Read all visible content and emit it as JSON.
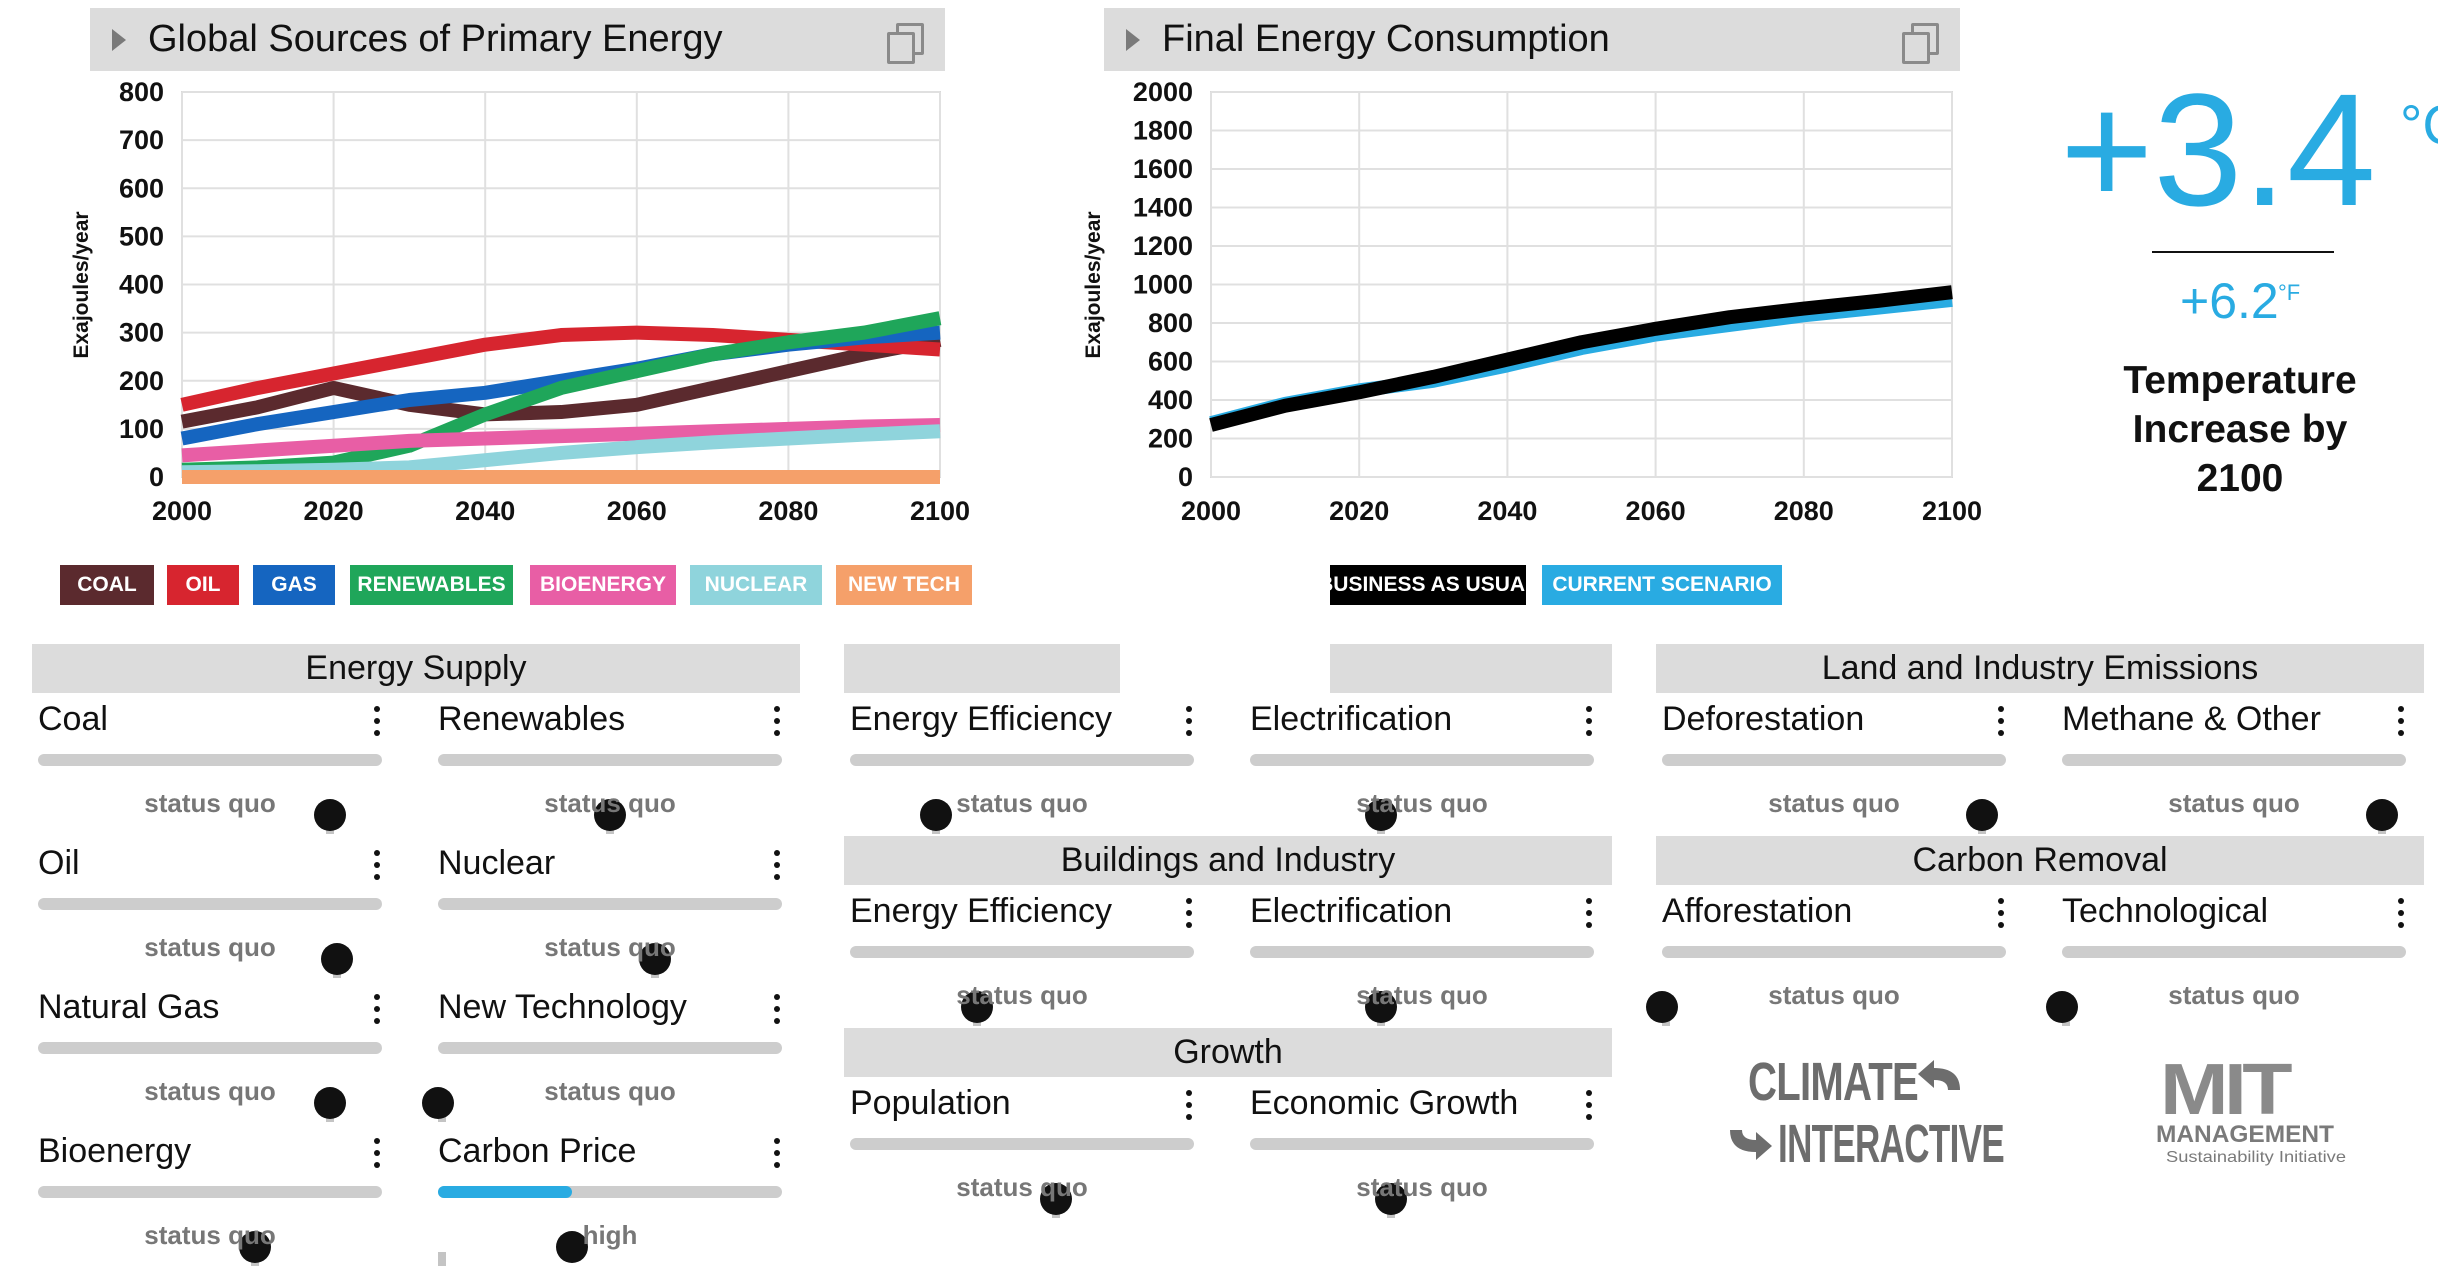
{
  "primary_chart": {
    "title": "Global Sources of Primary Energy",
    "ylabel": "Exajoules/year",
    "xticks": [
      "2000",
      "2020",
      "2040",
      "2060",
      "2080",
      "2100"
    ],
    "yticks": [
      "0",
      "100",
      "200",
      "300",
      "400",
      "500",
      "600",
      "700",
      "800"
    ]
  },
  "final_chart": {
    "title": "Final Energy Consumption",
    "ylabel": "Exajoules/year",
    "xticks": [
      "2000",
      "2020",
      "2040",
      "2060",
      "2080",
      "2100"
    ],
    "yticks": [
      "0",
      "200",
      "400",
      "600",
      "800",
      "1000",
      "1200",
      "1400",
      "1600",
      "1800",
      "2000"
    ]
  },
  "chart_data": [
    {
      "type": "line",
      "title": "Global Sources of Primary Energy",
      "xlabel": "",
      "ylabel": "Exajoules/year",
      "xlim": [
        2000,
        2100
      ],
      "ylim": [
        0,
        800
      ],
      "grid": true,
      "x": [
        2000,
        2010,
        2020,
        2030,
        2040,
        2050,
        2060,
        2070,
        2080,
        2090,
        2100
      ],
      "series": [
        {
          "name": "COAL",
          "color": "#5b2a2e",
          "values": [
            115,
            145,
            185,
            150,
            130,
            135,
            150,
            185,
            220,
            255,
            285
          ]
        },
        {
          "name": "OIL",
          "color": "#d7252f",
          "values": [
            150,
            185,
            215,
            245,
            275,
            295,
            300,
            295,
            285,
            275,
            265
          ]
        },
        {
          "name": "GAS",
          "color": "#1565c0",
          "values": [
            80,
            110,
            135,
            160,
            175,
            200,
            225,
            255,
            275,
            290,
            300
          ]
        },
        {
          "name": "RENEWABLES",
          "color": "#1fa65a",
          "values": [
            15,
            20,
            30,
            65,
            130,
            185,
            220,
            255,
            280,
            300,
            330
          ]
        },
        {
          "name": "BIOENERGY",
          "color": "#e85ea5",
          "values": [
            45,
            55,
            65,
            75,
            80,
            85,
            90,
            95,
            100,
            105,
            108
          ]
        },
        {
          "name": "NUCLEAR",
          "color": "#8fd4dc",
          "values": [
            10,
            12,
            15,
            20,
            35,
            50,
            62,
            72,
            80,
            88,
            95
          ]
        },
        {
          "name": "NEW TECH",
          "color": "#f5a06a",
          "values": [
            0,
            0,
            0,
            0,
            0,
            0,
            0,
            0,
            0,
            0,
            0
          ]
        }
      ]
    },
    {
      "type": "line",
      "title": "Final Energy Consumption",
      "xlabel": "",
      "ylabel": "Exajoules/year",
      "xlim": [
        2000,
        2100
      ],
      "ylim": [
        0,
        2000
      ],
      "grid": true,
      "x": [
        2000,
        2010,
        2020,
        2030,
        2040,
        2050,
        2060,
        2070,
        2080,
        2090,
        2100
      ],
      "series": [
        {
          "name": "CURRENT SCENARIO",
          "color": "#29abe2",
          "values": [
            280,
            380,
            450,
            500,
            580,
            670,
            740,
            790,
            840,
            880,
            920
          ]
        },
        {
          "name": "BUSINESS AS USUAL",
          "color": "#000000",
          "values": [
            270,
            370,
            440,
            520,
            610,
            700,
            770,
            830,
            875,
            915,
            960
          ]
        }
      ]
    }
  ],
  "primary_legend": [
    {
      "label": "COAL",
      "color": "#5b2a2e"
    },
    {
      "label": "OIL",
      "color": "#d7252f"
    },
    {
      "label": "GAS",
      "color": "#1565c0"
    },
    {
      "label": "RENEWABLES",
      "color": "#1fa65a"
    },
    {
      "label": "BIOENERGY",
      "color": "#e85ea5"
    },
    {
      "label": "NUCLEAR",
      "color": "#8fd4dc"
    },
    {
      "label": "NEW TECH",
      "color": "#f5a06a"
    }
  ],
  "final_legend": [
    {
      "label": "BUSINESS AS USUAL",
      "color": "#000000"
    },
    {
      "label": "CURRENT SCENARIO",
      "color": "#29abe2"
    }
  ],
  "temperature": {
    "celsius": "+3.4",
    "celsius_unit": "°C",
    "fahrenheit": "+6.2",
    "fahrenheit_unit": "°F",
    "caption_line1": "Temperature",
    "caption_line2": "Increase by",
    "caption_line3": "2100"
  },
  "sections": {
    "energy_supply": "Energy Supply",
    "buildings_industry": "Buildings and Industry",
    "growth": "Growth",
    "land_industry": "Land and Industry Emissions",
    "carbon_removal": "Carbon Removal"
  },
  "sliders": {
    "coal": {
      "label": "Coal",
      "status": "status quo",
      "value": 0.85,
      "mark": 0.85
    },
    "renewables": {
      "label": "Renewables",
      "status": "status quo",
      "value": 0.5,
      "mark": 0.5
    },
    "oil": {
      "label": "Oil",
      "status": "status quo",
      "value": 0.87,
      "mark": 0.87
    },
    "nuclear": {
      "label": "Nuclear",
      "status": "status quo",
      "value": 0.63,
      "mark": 0.63
    },
    "natural_gas": {
      "label": "Natural Gas",
      "status": "status quo",
      "value": 0.85,
      "mark": 0.85
    },
    "new_technology": {
      "label": "New Technology",
      "status": "status quo",
      "value": 0.0,
      "mark": 0.0
    },
    "bioenergy": {
      "label": "Bioenergy",
      "status": "status quo",
      "value": 0.63,
      "mark": 0.63
    },
    "carbon_price": {
      "label": "Carbon Price",
      "status": "high",
      "value": 0.39,
      "mark": 0.0
    },
    "transport_efficiency": {
      "label": "Energy Efficiency",
      "status": "status quo",
      "value": 0.25,
      "mark": 0.25
    },
    "transport_electrification": {
      "label": "Electrification",
      "status": "status quo",
      "value": 0.38,
      "mark": 0.38
    },
    "buildings_efficiency": {
      "label": "Energy Efficiency",
      "status": "status quo",
      "value": 0.37,
      "mark": 0.37
    },
    "buildings_electrification": {
      "label": "Electrification",
      "status": "status quo",
      "value": 0.38,
      "mark": 0.38
    },
    "population": {
      "label": "Population",
      "status": "status quo",
      "value": 0.6,
      "mark": 0.6
    },
    "economic_growth": {
      "label": "Economic Growth",
      "status": "status quo",
      "value": 0.41,
      "mark": 0.41
    },
    "deforestation": {
      "label": "Deforestation",
      "status": "status quo",
      "value": 0.93,
      "mark": 0.93
    },
    "methane_other": {
      "label": "Methane & Other",
      "status": "status quo",
      "value": 0.93,
      "mark": 0.93
    },
    "afforestation": {
      "label": "Afforestation",
      "status": "status quo",
      "value": 0.0,
      "mark": 0.0
    },
    "technological": {
      "label": "Technological",
      "status": "status quo",
      "value": 0.0,
      "mark": 0.0
    }
  },
  "logos": {
    "climate_interactive": [
      "CLIMATE",
      "INTERACTIVE"
    ],
    "mit": [
      "MIT",
      "MANAGEMENT",
      "Sustainability Initiative"
    ]
  }
}
